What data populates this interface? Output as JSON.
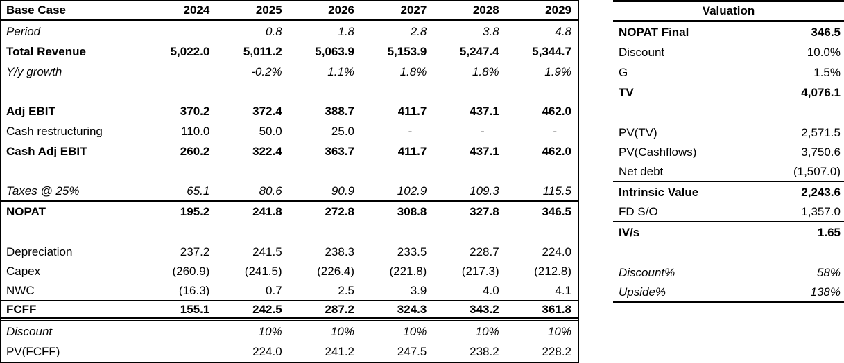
{
  "colors": {
    "text": "#000000",
    "background": "#ffffff",
    "border": "#000000"
  },
  "base_case_table": {
    "header": {
      "label": "Base Case",
      "years": [
        "2024",
        "2025",
        "2026",
        "2027",
        "2028",
        "2029"
      ]
    },
    "rows": [
      {
        "label": "Period",
        "style": "italic",
        "values": [
          "",
          "0.8",
          "1.8",
          "2.8",
          "3.8",
          "4.8"
        ]
      },
      {
        "label": "Total Revenue",
        "style": "bold",
        "values": [
          "5,022.0",
          "5,011.2",
          "5,063.9",
          "5,153.9",
          "5,247.4",
          "5,344.7"
        ]
      },
      {
        "label": "Y/y growth",
        "style": "italic",
        "values": [
          "",
          "-0.2%",
          "1.1%",
          "1.8%",
          "1.8%",
          "1.9%"
        ]
      },
      {
        "label": "",
        "style": "normal",
        "values": [
          "",
          "",
          "",
          "",
          "",
          ""
        ]
      },
      {
        "label": "Adj EBIT",
        "style": "bold",
        "values": [
          "370.2",
          "372.4",
          "388.7",
          "411.7",
          "437.1",
          "462.0"
        ]
      },
      {
        "label": "Cash restructuring",
        "style": "normal",
        "values": [
          "110.0",
          "50.0",
          "25.0",
          "-",
          "-",
          "-"
        ]
      },
      {
        "label": "Cash Adj EBIT",
        "style": "bold",
        "values": [
          "260.2",
          "322.4",
          "363.7",
          "411.7",
          "437.1",
          "462.0"
        ]
      },
      {
        "label": "",
        "style": "normal",
        "values": [
          "",
          "",
          "",
          "",
          "",
          ""
        ]
      },
      {
        "label": "Taxes @ 25%",
        "style": "italic",
        "border_bottom": "single",
        "values": [
          "65.1",
          "80.6",
          "90.9",
          "102.9",
          "109.3",
          "115.5"
        ]
      },
      {
        "label": "NOPAT",
        "style": "bold",
        "values": [
          "195.2",
          "241.8",
          "272.8",
          "308.8",
          "327.8",
          "346.5"
        ]
      },
      {
        "label": "",
        "style": "normal",
        "values": [
          "",
          "",
          "",
          "",
          "",
          ""
        ]
      },
      {
        "label": "Depreciation",
        "style": "normal",
        "values": [
          "237.2",
          "241.5",
          "238.3",
          "233.5",
          "228.7",
          "224.0"
        ]
      },
      {
        "label": "Capex",
        "style": "normal",
        "values": [
          "(260.9)",
          "(241.5)",
          "(226.4)",
          "(221.8)",
          "(217.3)",
          "(212.8)"
        ]
      },
      {
        "label": "NWC",
        "style": "normal",
        "border_bottom": "single",
        "values": [
          "(16.3)",
          "0.7",
          "2.5",
          "3.9",
          "4.0",
          "4.1"
        ]
      },
      {
        "label": "FCFF",
        "style": "bold",
        "border_bottom": "double",
        "values": [
          "155.1",
          "242.5",
          "287.2",
          "324.3",
          "343.2",
          "361.8"
        ]
      },
      {
        "label": "Discount",
        "style": "italic",
        "values": [
          "",
          "10%",
          "10%",
          "10%",
          "10%",
          "10%"
        ]
      },
      {
        "label": "PV(FCFF)",
        "style": "normal",
        "values": [
          "",
          "224.0",
          "241.2",
          "247.5",
          "238.2",
          "228.2"
        ]
      }
    ]
  },
  "valuation_table": {
    "title": "Valuation",
    "rows": [
      {
        "label": "NOPAT Final",
        "value": "346.5",
        "style": "bold"
      },
      {
        "label": "Discount",
        "value": "10.0%",
        "style": "normal"
      },
      {
        "label": "G",
        "value": "1.5%",
        "style": "normal"
      },
      {
        "label": "TV",
        "value": "4,076.1",
        "style": "bold"
      },
      {
        "label": "",
        "value": "",
        "style": "normal"
      },
      {
        "label": "PV(TV)",
        "value": "2,571.5",
        "style": "normal"
      },
      {
        "label": "PV(Cashflows)",
        "value": "3,750.6",
        "style": "normal"
      },
      {
        "label": "Net debt",
        "value": "(1,507.0)",
        "style": "normal",
        "border_bottom": "single"
      },
      {
        "label": "Intrinsic Value",
        "value": "2,243.6",
        "style": "bold"
      },
      {
        "label": "FD S/O",
        "value": "1,357.0",
        "style": "normal",
        "border_bottom": "single"
      },
      {
        "label": "IV/s",
        "value": "1.65",
        "style": "bold"
      },
      {
        "label": "",
        "value": "",
        "style": "normal"
      },
      {
        "label": "Discount%",
        "value": "58%",
        "style": "italic"
      },
      {
        "label": "Upside%",
        "value": "138%",
        "style": "italic",
        "border_bottom": "single"
      }
    ]
  }
}
